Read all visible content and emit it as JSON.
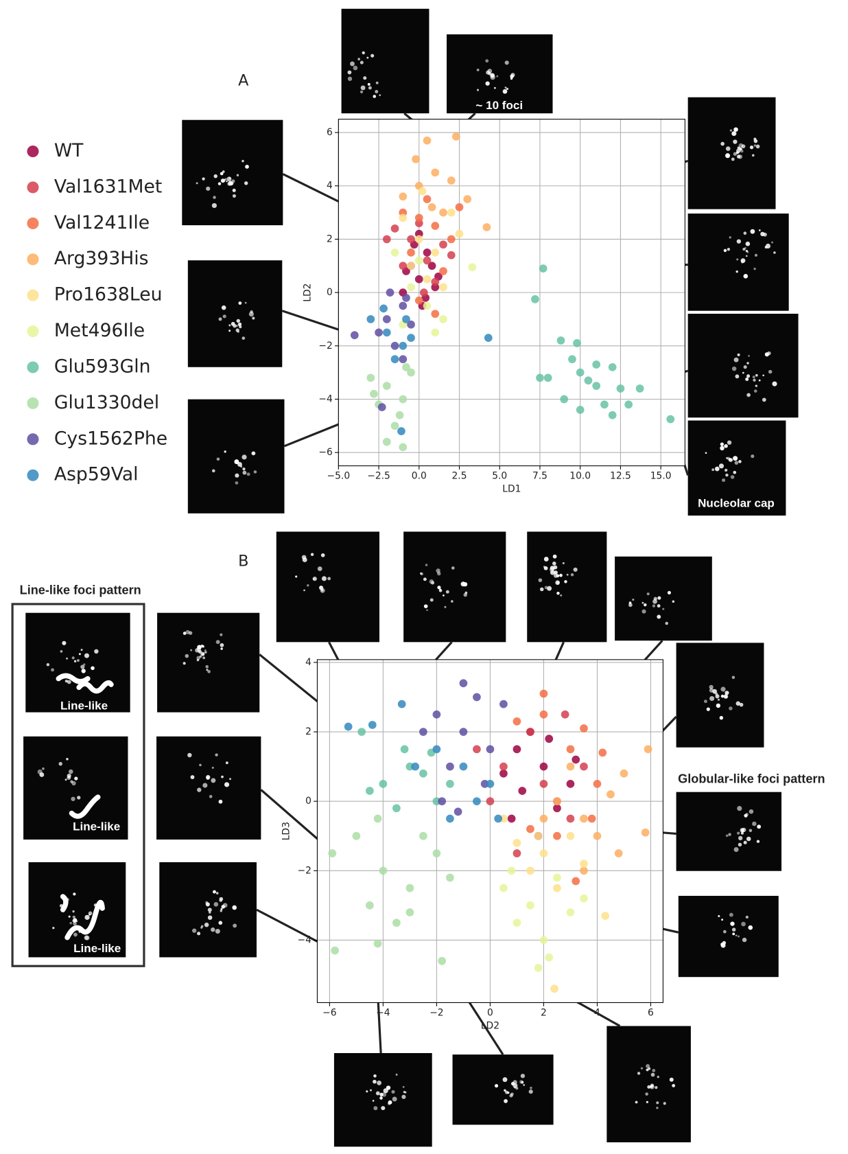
{
  "chart_data": [
    {
      "type": "scatter",
      "panel_label": "A",
      "x_label": "LD1",
      "y_label": "LD2",
      "xlim": [
        -5,
        16.5
      ],
      "ylim": [
        -6.5,
        6.5
      ],
      "xticks": [
        {
          "value": -5,
          "label": "−5.0"
        },
        {
          "value": -2.5,
          "label": "−2.5"
        },
        {
          "value": 0,
          "label": "0.0"
        },
        2.5,
        {
          "value": 5,
          "label": "5.0"
        },
        7.5,
        {
          "value": 10,
          "label": "10.0"
        },
        12.5,
        {
          "value": 15,
          "label": "15.0"
        }
      ],
      "yticks": [
        {
          "value": -6,
          "label": "−6"
        },
        {
          "value": -4,
          "label": "−4"
        },
        {
          "value": -2,
          "label": "−2"
        },
        0,
        2,
        4,
        6
      ],
      "grid": true,
      "annotations": [
        "~ 10 foci",
        "Nucleolar cap"
      ],
      "series": [
        {
          "name": "WT",
          "color": "#9e0142",
          "x": [
            -0.5,
            0,
            0.5,
            1,
            -1,
            0.2,
            0.8,
            -0.3,
            1.2,
            -0.8,
            0.4,
            0
          ],
          "y": [
            1,
            0.5,
            1.5,
            0.2,
            0,
            -0.5,
            1,
            1.8,
            0.6,
            0.8,
            -0.2,
            2.2
          ]
        },
        {
          "name": "Val1631Met",
          "color": "#d53e4f",
          "x": [
            -1.5,
            -0.5,
            0.5,
            1.5,
            -1,
            0,
            1,
            2,
            -2,
            0.3
          ],
          "y": [
            2.4,
            2,
            1.2,
            1.8,
            1,
            2.6,
            0.4,
            1.4,
            2,
            0
          ]
        },
        {
          "name": "Val1241Ile",
          "color": "#f46d43",
          "x": [
            -1,
            0,
            1,
            2,
            0.5,
            -0.5,
            1.5,
            2.5,
            0,
            1
          ],
          "y": [
            3,
            2.8,
            2.5,
            2,
            3.5,
            1.5,
            0.8,
            3.2,
            -0.3,
            -0.8
          ]
        },
        {
          "name": "Arg393His",
          "color": "#fdae61",
          "x": [
            0.5,
            -0.2,
            1,
            2,
            3,
            0,
            1.5,
            -1,
            0.8,
            4.2,
            2.3
          ],
          "y": [
            5.7,
            5,
            4.5,
            4.2,
            3.5,
            4,
            3,
            3.6,
            3.2,
            2.45,
            5.85
          ]
        },
        {
          "name": "Pro1638Leu",
          "color": "#fee08b",
          "x": [
            -1,
            0,
            1,
            2,
            0.5,
            1.5,
            -0.5,
            2.5,
            0.2
          ],
          "y": [
            2.8,
            2,
            1.5,
            3,
            0.5,
            0.2,
            1,
            2.2,
            3.8
          ]
        },
        {
          "name": "Met496Ile",
          "color": "#e6f598",
          "x": [
            -1.5,
            -0.5,
            0.5,
            1.5,
            3.3,
            0,
            1,
            -1
          ],
          "y": [
            1.5,
            0.2,
            -0.5,
            -1,
            0.95,
            1.2,
            -1.5,
            -1.2
          ]
        },
        {
          "name": "Glu593Gln",
          "color": "#66c2a5",
          "x": [
            7.7,
            7.2,
            8.8,
            9.5,
            10,
            11,
            12,
            12.5,
            8,
            9,
            10.5,
            11.5,
            13,
            13.7,
            15.6,
            7.5,
            11,
            10,
            12,
            9.8
          ],
          "y": [
            0.9,
            -0.25,
            -1.8,
            -2.5,
            -3,
            -3.5,
            -2.8,
            -3.6,
            -3.2,
            -4,
            -3.3,
            -4.2,
            -4.2,
            -3.6,
            -4.75,
            -3.2,
            -2.7,
            -4.4,
            -4.6,
            -1.9
          ]
        },
        {
          "name": "Glu1330del",
          "color": "#abdda4",
          "x": [
            -3,
            -2,
            -1,
            -1,
            -2.5,
            -1.5,
            -0.5,
            -1.2,
            -2.8,
            -2,
            -0.8
          ],
          "y": [
            -3.2,
            -3.5,
            -4,
            -5.8,
            -4.2,
            -5,
            -3,
            -4.6,
            -3.8,
            -5.6,
            -2.8
          ]
        },
        {
          "name": "Cys1562Phe",
          "color": "#5e4fa2",
          "x": [
            -4,
            -2,
            -1,
            -1.5,
            -0.5,
            -2.5,
            -1.8,
            -1,
            -2.3,
            -0.8
          ],
          "y": [
            -1.6,
            -1,
            -0.5,
            -2,
            -1.2,
            -1.5,
            0,
            -2.5,
            -4.3,
            -0.2
          ]
        },
        {
          "name": "Asp59Val",
          "color": "#3288bd",
          "x": [
            -3,
            -2,
            -1,
            -1.5,
            -0.5,
            4.3,
            -1.1,
            -2.2,
            -0.8
          ],
          "y": [
            -1,
            -1.5,
            -2,
            -2.5,
            -1.7,
            -1.7,
            -5.2,
            -0.6,
            -1
          ]
        }
      ]
    },
    {
      "type": "scatter",
      "panel_label": "B",
      "x_label": "LD2",
      "y_label": "LD3",
      "xlim": [
        -6.46,
        6.46
      ],
      "ylim": [
        -5.8,
        4.08
      ],
      "xticks": [
        {
          "value": -6,
          "label": "−6"
        },
        {
          "value": -4,
          "label": "−4"
        },
        {
          "value": -2,
          "label": "−2"
        },
        0,
        2,
        4,
        6
      ],
      "yticks": [
        {
          "value": -4,
          "label": "−4"
        },
        {
          "value": -2,
          "label": "−2"
        },
        0,
        2,
        4
      ],
      "grid": true,
      "annotations": [
        "Line-like foci pattern",
        "Line-like",
        "Line-like",
        "Line-like",
        "Globular-like foci pattern"
      ],
      "series": [
        {
          "color": "#9e0142",
          "x": [
            1,
            2,
            3,
            1.5,
            2.5,
            0.5,
            1.8,
            2.2,
            3.2,
            0.8,
            1.2
          ],
          "y": [
            1.5,
            1,
            0.5,
            2,
            -0.2,
            0.8,
            -1,
            1.8,
            1.2,
            -0.5,
            0.3
          ]
        },
        {
          "color": "#d53e4f",
          "x": [
            0.5,
            1.5,
            2.5,
            3.5,
            1,
            2,
            3,
            0,
            -0.5,
            2.8
          ],
          "y": [
            1,
            2,
            0,
            1,
            -1.5,
            0.5,
            -0.5,
            0,
            1.5,
            2.5
          ]
        },
        {
          "color": "#f46d43",
          "x": [
            2,
            2,
            3,
            4,
            3.5,
            2.5,
            1,
            3.8,
            4.2,
            3.2,
            1.5
          ],
          "y": [
            3.1,
            2.5,
            1.5,
            0.5,
            2.1,
            -1,
            2.3,
            -0.5,
            1.4,
            -2.3,
            -0.8
          ]
        },
        {
          "color": "#fdae61",
          "x": [
            2.5,
            3.5,
            4.5,
            5,
            4,
            3,
            5.8,
            5.9,
            4.8,
            3.5,
            2
          ],
          "y": [
            0,
            -0.5,
            0.2,
            0.8,
            -1,
            1,
            -0.9,
            1.5,
            -1.5,
            -2,
            -0.5
          ]
        },
        {
          "color": "#fee08b",
          "x": [
            1,
            2,
            3,
            0.5,
            1.5,
            2.5,
            3.5,
            4.3,
            2.4,
            1.8
          ],
          "y": [
            -1.2,
            -1.5,
            -1,
            -0.5,
            -2,
            -2.5,
            -1.8,
            -3.3,
            -5.4,
            -1
          ]
        },
        {
          "color": "#e6f598",
          "x": [
            0.5,
            1.5,
            2.5,
            1,
            2,
            3,
            0.8,
            2.2,
            1.8,
            3.5
          ],
          "y": [
            -2.5,
            -3,
            -2.2,
            -3.5,
            -4,
            -3.2,
            -2,
            -4.5,
            -4.8,
            -2.8
          ]
        },
        {
          "color": "#66c2a5",
          "x": [
            -4,
            -3,
            -2,
            -3.5,
            -2.5,
            -4.5,
            -1.5,
            -3.2,
            -4.8,
            -2.2
          ],
          "y": [
            0.5,
            1,
            0,
            -0.2,
            0.8,
            0.3,
            0.5,
            1.5,
            2,
            1.4
          ]
        },
        {
          "color": "#abdda4",
          "x": [
            -5,
            -4,
            -3,
            -2,
            -4.5,
            -3.5,
            -2.5,
            -1.5,
            -5.9,
            -5.8,
            -4.2,
            -1.8,
            -3,
            -4.2
          ],
          "y": [
            -1,
            -2,
            -2.5,
            -1.5,
            -3,
            -3.5,
            -1,
            -2.2,
            -1.5,
            -4.3,
            -4.1,
            -4.6,
            -3.2,
            -0.5
          ]
        },
        {
          "color": "#5e4fa2",
          "x": [
            -2,
            -1,
            0,
            -1.5,
            -0.5,
            -2.5,
            -1,
            -1.8,
            -0.2,
            -1.2,
            0.5
          ],
          "y": [
            2.5,
            2,
            1.5,
            1,
            3,
            2,
            3.4,
            0,
            0.5,
            -0.3,
            2.8
          ]
        },
        {
          "color": "#3288bd",
          "x": [
            -5.3,
            -4.4,
            -3.3,
            -1,
            0,
            -2,
            -1.5,
            -0.5,
            -2.8,
            0.3
          ],
          "y": [
            2.15,
            2.2,
            2.8,
            1,
            0.5,
            1.5,
            -0.5,
            0,
            1,
            -0.5
          ]
        }
      ]
    }
  ]
}
